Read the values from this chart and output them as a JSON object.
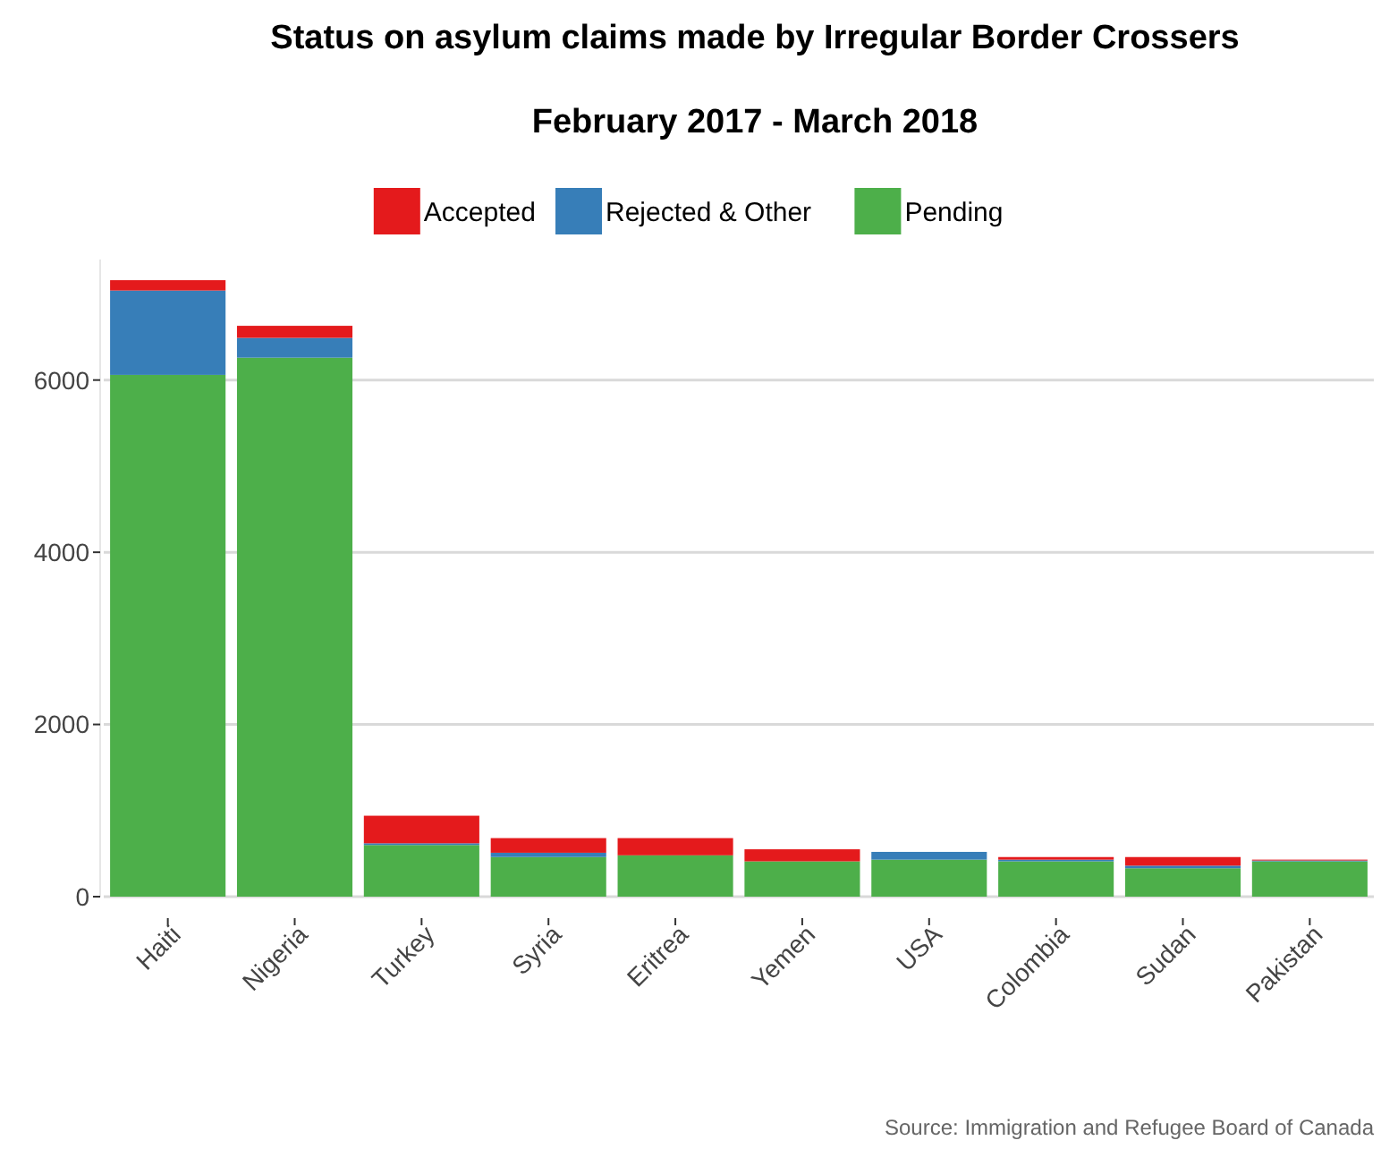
{
  "chart_data": {
    "type": "bar",
    "title": "Status on asylum claims made by Irregular Border Crossers",
    "subtitle": "February 2017 - March 2018",
    "categories": [
      "Haiti",
      "Nigeria",
      "Turkey",
      "Syria",
      "Eritrea",
      "Yemen",
      "USA",
      "Colombia",
      "Sudan",
      "Pakistan"
    ],
    "stacked": true,
    "series": [
      {
        "name": "Pending",
        "color": "#4daf4a",
        "values": [
          6060,
          6260,
          600,
          460,
          480,
          410,
          430,
          410,
          330,
          410
        ]
      },
      {
        "name": "Rejected & Other",
        "color": "#377eb8",
        "values": [
          980,
          230,
          20,
          50,
          0,
          0,
          90,
          20,
          30,
          10
        ]
      },
      {
        "name": "Accepted",
        "color": "#e41a1c",
        "values": [
          120,
          140,
          320,
          170,
          200,
          140,
          0,
          30,
          100,
          10
        ]
      }
    ],
    "ylim": [
      0,
      7400
    ],
    "yticks": [
      0,
      2000,
      4000,
      6000
    ],
    "grid": "y",
    "legend": "top",
    "annotations": [
      "Source: Immigration and Refugee Board of Canada"
    ]
  }
}
